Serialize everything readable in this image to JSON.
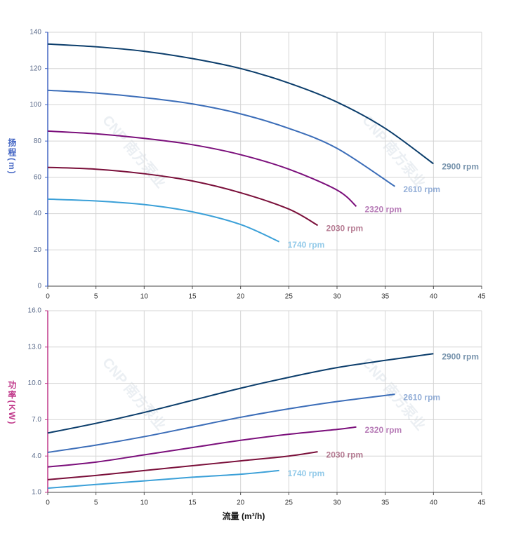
{
  "chart_data": [
    {
      "type": "line",
      "ylabel": "扬程(m)",
      "axis_color": "#4466c4",
      "watermark": "CNP 南方泵业",
      "xlim": [
        0,
        45
      ],
      "xticks": [
        0,
        5,
        10,
        15,
        20,
        25,
        30,
        35,
        40,
        45
      ],
      "ylim": [
        0,
        140
      ],
      "yticks": [
        0,
        20,
        40,
        60,
        80,
        100,
        120,
        140
      ],
      "grid": true,
      "series": [
        {
          "name": "2900 rpm",
          "color": "#0b3d6b",
          "x": [
            0,
            5,
            10,
            15,
            20,
            25,
            30,
            35,
            40
          ],
          "values": [
            133.5,
            132,
            129.5,
            125.5,
            120,
            112,
            101.5,
            87,
            67.5
          ]
        },
        {
          "name": "2610 rpm",
          "color": "#3b6db8",
          "x": [
            0,
            5,
            10,
            15,
            20,
            25,
            30,
            36
          ],
          "values": [
            108,
            106.5,
            104,
            100.5,
            95,
            87,
            76,
            55
          ]
        },
        {
          "name": "2320 rpm",
          "color": "#7b0f7b",
          "x": [
            0,
            5,
            10,
            15,
            20,
            25,
            30,
            32
          ],
          "values": [
            85.5,
            84,
            81.5,
            78,
            72.5,
            64.5,
            53,
            44
          ]
        },
        {
          "name": "2030 rpm",
          "color": "#7a0f3a",
          "x": [
            0,
            5,
            10,
            15,
            20,
            25,
            28
          ],
          "values": [
            65.5,
            64.5,
            62,
            58,
            51.5,
            42.5,
            33.5
          ]
        },
        {
          "name": "1740 rpm",
          "color": "#3ba0d8",
          "x": [
            0,
            5,
            10,
            15,
            20,
            24
          ],
          "values": [
            48,
            47,
            45,
            41,
            34,
            24.5
          ]
        }
      ]
    },
    {
      "type": "line",
      "ylabel": "功率(KW)",
      "xlabel": "流量 (m³/h)",
      "axis_color": "#c0388a",
      "watermark": "CNP 南方泵业",
      "xlim": [
        0,
        45
      ],
      "xticks": [
        0,
        5,
        10,
        15,
        20,
        25,
        30,
        35,
        40,
        45
      ],
      "ylim": [
        1,
        16
      ],
      "yticks": [
        {
          "value": 1,
          "label": "1.0"
        },
        {
          "value": 4,
          "label": "4.0"
        },
        {
          "value": 7,
          "label": "7.0"
        },
        {
          "value": 10,
          "label": "10.0"
        },
        {
          "value": 13,
          "label": "13.0"
        },
        {
          "value": 16,
          "label": "16.0"
        }
      ],
      "grid": true,
      "series": [
        {
          "name": "2900 rpm",
          "color": "#0b3d6b",
          "x": [
            0,
            5,
            10,
            15,
            20,
            25,
            30,
            35,
            40
          ],
          "values": [
            5.9,
            6.7,
            7.6,
            8.6,
            9.6,
            10.5,
            11.3,
            11.9,
            12.45
          ]
        },
        {
          "name": "2610 rpm",
          "color": "#3b6db8",
          "x": [
            0,
            5,
            10,
            15,
            20,
            25,
            30,
            36
          ],
          "values": [
            4.3,
            4.9,
            5.6,
            6.4,
            7.2,
            7.9,
            8.5,
            9.1
          ]
        },
        {
          "name": "2320 rpm",
          "color": "#7b0f7b",
          "x": [
            0,
            5,
            10,
            15,
            20,
            25,
            30,
            32
          ],
          "values": [
            3.1,
            3.5,
            4.1,
            4.7,
            5.3,
            5.8,
            6.2,
            6.4
          ]
        },
        {
          "name": "2030 rpm",
          "color": "#7a0f3a",
          "x": [
            0,
            5,
            10,
            15,
            20,
            25,
            28
          ],
          "values": [
            2.05,
            2.4,
            2.8,
            3.2,
            3.6,
            4.0,
            4.35
          ]
        },
        {
          "name": "1740 rpm",
          "color": "#3ba0d8",
          "x": [
            0,
            5,
            10,
            15,
            20,
            24
          ],
          "values": [
            1.35,
            1.65,
            1.95,
            2.25,
            2.5,
            2.8
          ]
        }
      ]
    }
  ]
}
